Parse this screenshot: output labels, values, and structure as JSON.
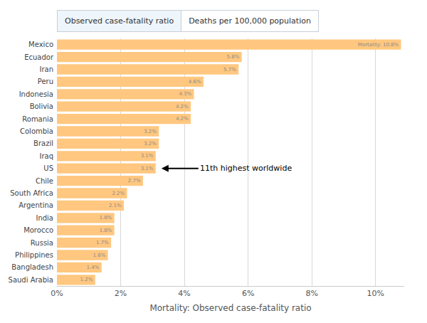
{
  "chart_data": {
    "type": "bar",
    "orientation": "horizontal",
    "tabs": [
      "Observed case-fatality ratio",
      "Deaths per 100,000 population"
    ],
    "xlabel": "Mortality: Observed case-fatality ratio",
    "categories": [
      "Mexico",
      "Ecuador",
      "Iran",
      "Peru",
      "Indonesia",
      "Bolivia",
      "Romania",
      "Colombia",
      "Brazil",
      "Iraq",
      "US",
      "Chile",
      "South Africa",
      "Argentina",
      "India",
      "Morocco",
      "Russia",
      "Philippines",
      "Bangladesh",
      "Saudi Arabia"
    ],
    "values": [
      10.8,
      5.8,
      5.7,
      4.6,
      4.3,
      4.2,
      4.2,
      3.2,
      3.2,
      3.1,
      3.1,
      2.7,
      2.2,
      2.1,
      1.8,
      1.8,
      1.7,
      1.6,
      1.4,
      1.2
    ],
    "value_labels": [
      "Mortality: 10.8%",
      "5.8%",
      "5.7%",
      "4.6%",
      "4.3%",
      "4.2%",
      "4.2%",
      "3.2%",
      "3.2%",
      "3.1%",
      "3.1%",
      "2.7%",
      "2.2%",
      "2.1%",
      "1.8%",
      "1.8%",
      "1.7%",
      "1.6%",
      "1.4%",
      "1.2%"
    ],
    "data_labels": true,
    "color": "#ffc77f",
    "xlim": [
      0,
      10.9
    ],
    "xticks": [
      {
        "value": 0,
        "label": "0%"
      },
      {
        "value": 2,
        "label": "2%"
      },
      {
        "value": 4,
        "label": "4%"
      },
      {
        "value": 6,
        "label": "6%"
      },
      {
        "value": 8,
        "label": "8%"
      },
      {
        "value": 10,
        "label": "10%"
      }
    ],
    "grid": true,
    "annotations": [
      {
        "text": "11th highest worldwide",
        "category": "US"
      }
    ]
  }
}
